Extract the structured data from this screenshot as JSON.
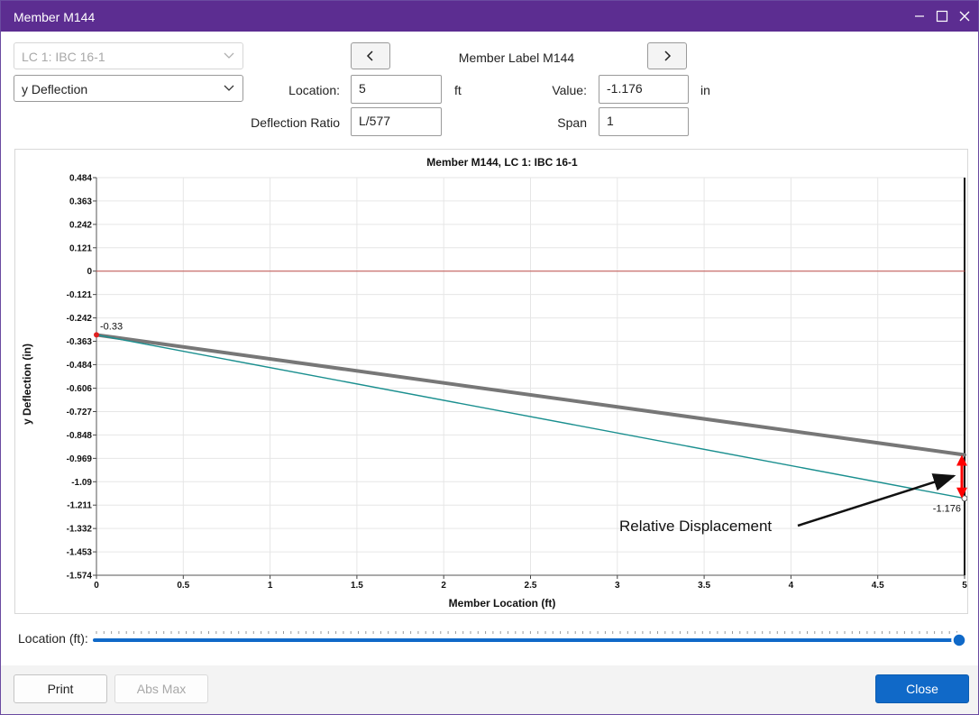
{
  "window": {
    "title": "Member M144"
  },
  "controls": {
    "load_case": "LC 1: IBC 16-1",
    "result_type": "y Deflection",
    "member_label": "Member Label M144",
    "location_label": "Location:",
    "location_value": "5",
    "location_unit": "ft",
    "value_label": "Value:",
    "value_value": "-1.176",
    "value_unit": "in",
    "ratio_label": "Deflection Ratio",
    "ratio_value": "L/577",
    "span_label": "Span",
    "span_value": "1"
  },
  "chart_data": {
    "type": "line",
    "title": "Member M144, LC 1: IBC 16-1",
    "xlabel": "Member Location (ft)",
    "ylabel": "y Deflection (in)",
    "xlim": [
      0,
      5
    ],
    "ylim": [
      -1.574,
      0.484
    ],
    "x_ticks": [
      "0",
      "0.5",
      "1",
      "1.5",
      "2",
      "2.5",
      "3",
      "3.5",
      "4",
      "4.5",
      "5"
    ],
    "y_ticks": [
      "0.484",
      "0.363",
      "0.242",
      "0.121",
      "0",
      "-0.121",
      "-0.242",
      "-0.363",
      "-0.484",
      "-0.606",
      "-0.727",
      "-0.848",
      "-0.969",
      "-1.09",
      "-1.211",
      "-1.332",
      "-1.453",
      "-1.574"
    ],
    "grid": true,
    "series": [
      {
        "x": [
          0,
          5
        ],
        "values": [
          -0.33,
          -0.951
        ],
        "color": "#777777"
      },
      {
        "x": [
          0,
          5
        ],
        "values": [
          -0.33,
          -1.176
        ],
        "color": "#1a8f8f"
      },
      {
        "x": [
          0,
          5
        ],
        "values": [
          0,
          0
        ],
        "color": "#c0504d"
      }
    ],
    "point_labels": [
      {
        "x": 0,
        "y": -0.33,
        "text": "-0.33"
      },
      {
        "x": 5,
        "y": -1.176,
        "text": "-1.176"
      }
    ],
    "annotation": {
      "text": "Relative Displacement",
      "points_to_x": 5,
      "points_to_y": -1.06
    }
  },
  "slider": {
    "label": "Location (ft):",
    "value": 5,
    "min": 0,
    "max": 5,
    "accent": "#1069c8"
  },
  "footer": {
    "print": "Print",
    "abs_max": "Abs Max",
    "close": "Close"
  },
  "colors": {
    "titlebar": "#5c2d91",
    "accent": "#1069c8"
  }
}
